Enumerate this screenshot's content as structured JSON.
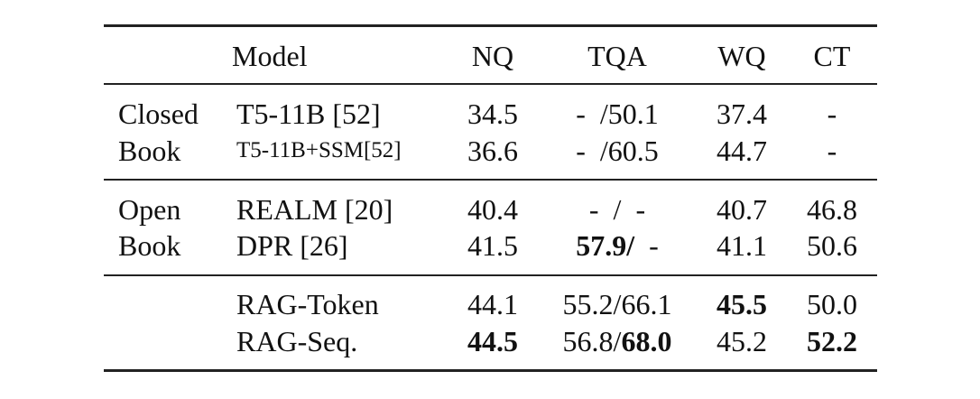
{
  "table": {
    "header": [
      "Model",
      "NQ",
      "TQA",
      "WQ",
      "CT"
    ],
    "groups": [
      {
        "label": [
          "Closed",
          "Book"
        ],
        "rows": [
          {
            "model": "T5-11B [52]",
            "cells": [
              [
                {
                  "text": "34.5"
                }
              ],
              [
                {
                  "text": "-  /50.1"
                }
              ],
              [
                {
                  "text": "37.4"
                }
              ],
              [
                {
                  "text": "-"
                }
              ]
            ]
          },
          {
            "model": "T5-11B+SSM[52]",
            "cells": [
              [
                {
                  "text": "36.6"
                }
              ],
              [
                {
                  "text": "-  /60.5"
                }
              ],
              [
                {
                  "text": "44.7"
                }
              ],
              [
                {
                  "text": "-"
                }
              ]
            ]
          }
        ]
      },
      {
        "label": [
          "Open",
          "Book"
        ],
        "rows": [
          {
            "model": "REALM [20]",
            "cells": [
              [
                {
                  "text": "40.4"
                }
              ],
              [
                {
                  "text": "-  /  -"
                }
              ],
              [
                {
                  "text": "40.7"
                }
              ],
              [
                {
                  "text": "46.8"
                }
              ]
            ]
          },
          {
            "model": "DPR [26]",
            "cells": [
              [
                {
                  "text": "41.5"
                }
              ],
              [
                {
                  "text": "57.9/",
                  "bold": true
                },
                {
                  "text": "  -"
                }
              ],
              [
                {
                  "text": "41.1"
                }
              ],
              [
                {
                  "text": "50.6"
                }
              ]
            ]
          }
        ]
      },
      {
        "label": [],
        "rows": [
          {
            "model": "RAG-Token",
            "cells": [
              [
                {
                  "text": "44.1"
                }
              ],
              [
                {
                  "text": "55.2/66.1"
                }
              ],
              [
                {
                  "text": "45.5",
                  "bold": true
                }
              ],
              [
                {
                  "text": "50.0"
                }
              ]
            ]
          },
          {
            "model": "RAG-Seq.",
            "cells": [
              [
                {
                  "text": "44.5",
                  "bold": true
                }
              ],
              [
                {
                  "text": "56.8/"
                },
                {
                  "text": "68.0",
                  "bold": true
                }
              ],
              [
                {
                  "text": "45.2"
                }
              ],
              [
                {
                  "text": "52.2",
                  "bold": true
                }
              ]
            ]
          }
        ]
      }
    ]
  }
}
